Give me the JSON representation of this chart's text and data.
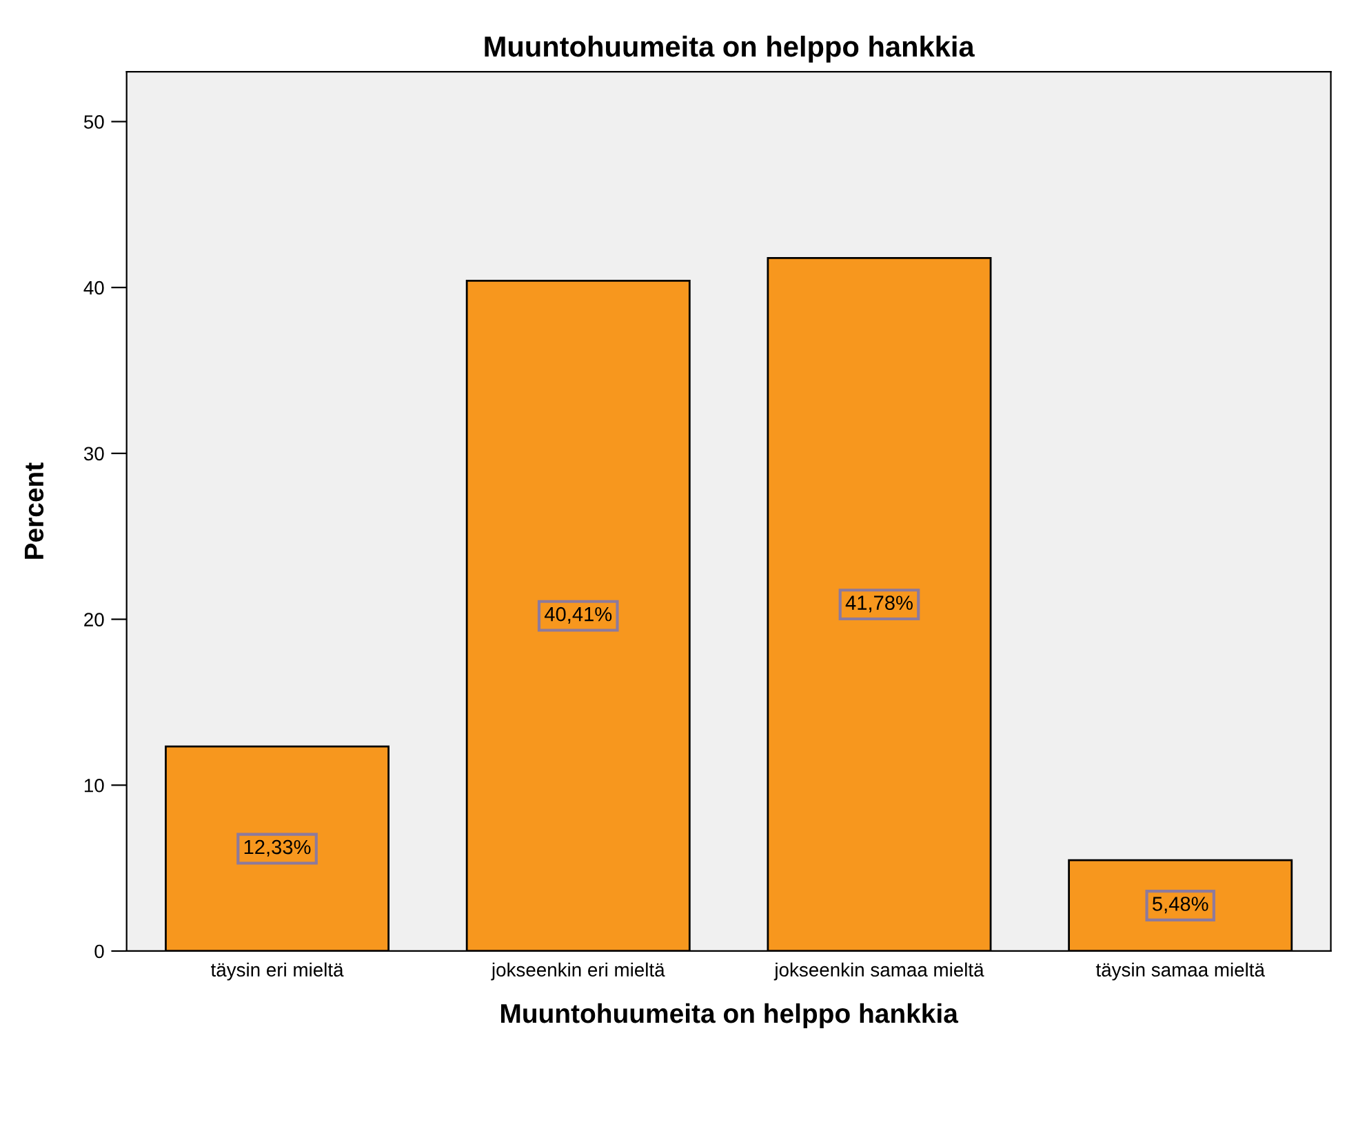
{
  "chart_data": {
    "type": "bar",
    "title": "Muuntohuumeita on helppo hankkia",
    "xlabel": "Muuntohuumeita on helppo hankkia",
    "ylabel": "Percent",
    "categories": [
      "täysin eri mieltä",
      "jokseenkin eri mieltä",
      "jokseenkin samaa mieltä",
      "täysin samaa mieltä"
    ],
    "values": [
      12.33,
      40.41,
      41.78,
      5.48
    ],
    "value_labels": [
      "12,33%",
      "40,41%",
      "41,78%",
      "5,48%"
    ],
    "color": "#f7971e",
    "ylim": [
      0,
      53
    ],
    "yticks": [
      0,
      10,
      20,
      30,
      40,
      50
    ],
    "grid": false,
    "legend": false
  }
}
